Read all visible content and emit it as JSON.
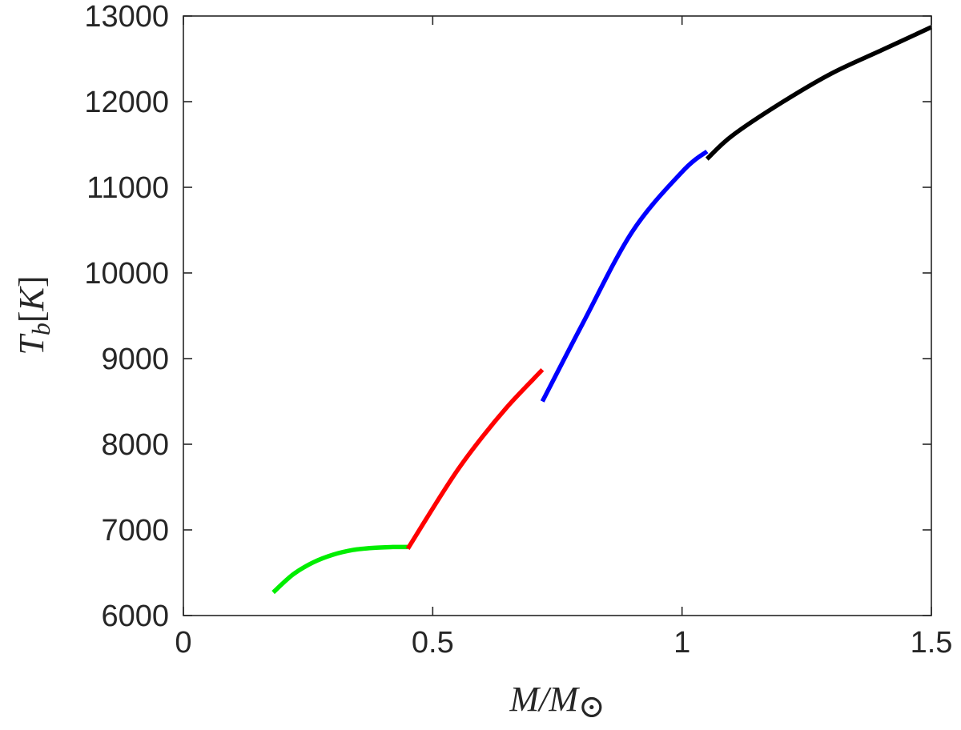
{
  "chart_data": {
    "type": "line",
    "title": "",
    "xlabel": "M/M⊙",
    "ylabel": "T_b[K]",
    "xlim": [
      0,
      1.5
    ],
    "ylim": [
      6000,
      13000
    ],
    "xticks": [
      0,
      0.5,
      1,
      1.5
    ],
    "xtick_labels": [
      "0",
      "0.5",
      "1",
      "1.5"
    ],
    "yticks": [
      6000,
      7000,
      8000,
      9000,
      10000,
      11000,
      12000,
      13000
    ],
    "ytick_labels": [
      "6000",
      "7000",
      "8000",
      "9000",
      "10000",
      "11000",
      "12000",
      "13000"
    ],
    "grid": false,
    "legend": "none",
    "series": [
      {
        "color": "#00ee00",
        "x": [
          0.18,
          0.22,
          0.26,
          0.3,
          0.34,
          0.38,
          0.42,
          0.45
        ],
        "y": [
          6270,
          6480,
          6620,
          6710,
          6765,
          6790,
          6800,
          6800
        ]
      },
      {
        "color": "#ff0000",
        "x": [
          0.45,
          0.5,
          0.55,
          0.6,
          0.65,
          0.7,
          0.72
        ],
        "y": [
          6780,
          7250,
          7700,
          8090,
          8440,
          8750,
          8870
        ]
      },
      {
        "color": "#0000ff",
        "x": [
          0.72,
          0.8,
          0.9,
          1.0,
          1.05
        ],
        "y": [
          8500,
          9400,
          10480,
          11180,
          11420
        ]
      },
      {
        "color": "#000000",
        "x": [
          1.05,
          1.1,
          1.2,
          1.3,
          1.4,
          1.5
        ],
        "y": [
          11330,
          11600,
          11990,
          12330,
          12600,
          12870
        ]
      }
    ]
  }
}
